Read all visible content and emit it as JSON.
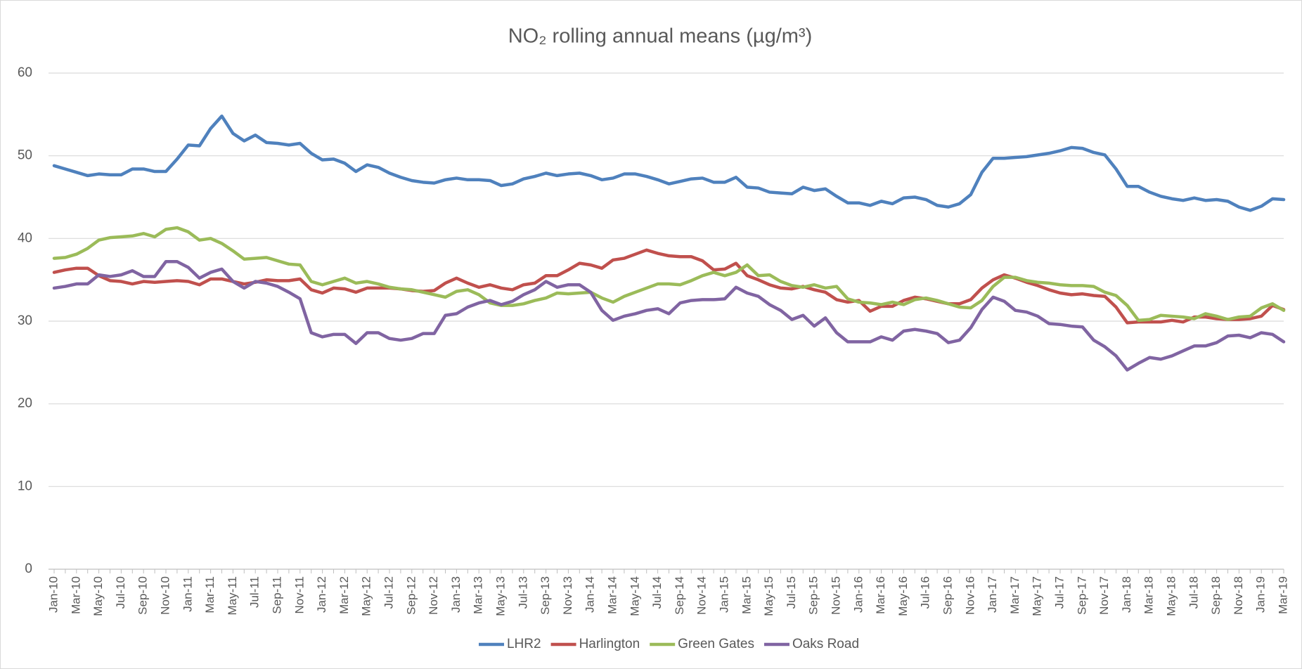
{
  "chart_data": {
    "type": "line",
    "title": "NO₂ rolling annual means (µg/m³)",
    "categories": [
      "Jan-10",
      null,
      "Mar-10",
      null,
      "May-10",
      null,
      "Jul-10",
      null,
      "Sep-10",
      null,
      "Nov-10",
      null,
      "Jan-11",
      null,
      "Mar-11",
      null,
      "May-11",
      null,
      "Jul-11",
      null,
      "Sep-11",
      null,
      "Nov-11",
      null,
      "Jan-12",
      null,
      "Mar-12",
      null,
      "May-12",
      null,
      "Jul-12",
      null,
      "Sep-12",
      null,
      "Nov-12",
      null,
      "Jan-13",
      null,
      "Mar-13",
      null,
      "May-13",
      null,
      "Jul-13",
      null,
      "Sep-13",
      null,
      "Nov-13",
      null,
      "Jan-14",
      null,
      "Mar-14",
      null,
      "May-14",
      null,
      "Jul-14",
      null,
      "Sep-14",
      null,
      "Nov-14",
      null,
      "Jan-15",
      null,
      "Mar-15",
      null,
      "May-15",
      null,
      "Jul-15",
      null,
      "Sep-15",
      null,
      "Nov-15",
      null,
      "Jan-16",
      null,
      "Mar-16",
      null,
      "May-16",
      null,
      "Jul-16",
      null,
      "Sep-16",
      null,
      "Nov-16",
      null,
      "Jan-17",
      null,
      "Mar-17",
      null,
      "May-17",
      null,
      "Jul-17",
      null,
      "Sep-17",
      null,
      "Nov-17",
      null,
      "Jan-18",
      null,
      "Mar-18",
      null,
      "May-18",
      null,
      "Jul-18",
      null,
      "Sep-18",
      null,
      "Nov-18",
      null,
      "Jan-19",
      null,
      "Mar-19"
    ],
    "series": [
      {
        "name": "LHR2",
        "color": "#4f81bd",
        "values": [
          48.8,
          48.4,
          48.0,
          47.6,
          47.8,
          47.7,
          47.7,
          48.4,
          48.4,
          48.1,
          48.1,
          49.6,
          51.3,
          51.2,
          53.3,
          54.8,
          52.7,
          51.8,
          52.5,
          51.6,
          51.5,
          51.3,
          51.5,
          50.3,
          49.5,
          49.6,
          49.1,
          48.1,
          48.9,
          48.6,
          47.9,
          47.4,
          47.0,
          46.8,
          46.7,
          47.1,
          47.3,
          47.1,
          47.1,
          47.0,
          46.4,
          46.6,
          47.2,
          47.5,
          47.9,
          47.6,
          47.8,
          47.9,
          47.6,
          47.1,
          47.3,
          47.8,
          47.8,
          47.5,
          47.1,
          46.6,
          46.9,
          47.2,
          47.3,
          46.8,
          46.8,
          47.4,
          46.2,
          46.1,
          45.6,
          45.5,
          45.4,
          46.2,
          45.8,
          46.0,
          45.1,
          44.3,
          44.3,
          44.0,
          44.5,
          44.2,
          44.9,
          45.0,
          44.7,
          44.0,
          43.8,
          44.2,
          45.3,
          48.0,
          49.7,
          49.7,
          49.8,
          49.9,
          50.1,
          50.3,
          50.6,
          51.0,
          50.9,
          50.4,
          50.1,
          48.4,
          46.3,
          46.3,
          45.6,
          45.1,
          44.8,
          44.6,
          44.9,
          44.6,
          44.7,
          44.5,
          43.8,
          43.4,
          43.9,
          44.8,
          44.7
        ]
      },
      {
        "name": "Harlington",
        "color": "#c0504d",
        "values": [
          35.9,
          36.2,
          36.4,
          36.4,
          35.5,
          34.9,
          34.8,
          34.5,
          34.8,
          34.7,
          34.8,
          34.9,
          34.8,
          34.4,
          35.1,
          35.1,
          34.8,
          34.5,
          34.7,
          35.0,
          34.9,
          34.9,
          35.1,
          33.8,
          33.4,
          34.0,
          33.9,
          33.5,
          34.0,
          34.0,
          34.0,
          33.9,
          33.7,
          33.6,
          33.7,
          34.6,
          35.2,
          34.6,
          34.1,
          34.4,
          34.0,
          33.8,
          34.4,
          34.6,
          35.5,
          35.5,
          36.2,
          37.0,
          36.8,
          36.4,
          37.4,
          37.6,
          38.1,
          38.6,
          38.2,
          37.9,
          37.8,
          37.8,
          37.3,
          36.2,
          36.3,
          37.0,
          35.5,
          35.0,
          34.4,
          34.0,
          33.9,
          34.2,
          33.8,
          33.5,
          32.6,
          32.3,
          32.5,
          31.2,
          31.8,
          31.8,
          32.5,
          32.9,
          32.7,
          32.4,
          32.1,
          32.1,
          32.6,
          34.0,
          35.0,
          35.6,
          35.2,
          34.7,
          34.3,
          33.8,
          33.4,
          33.2,
          33.3,
          33.1,
          33.0,
          31.7,
          29.8,
          29.9,
          29.9,
          29.9,
          30.1,
          29.9,
          30.5,
          30.5,
          30.3,
          30.2,
          30.2,
          30.3,
          30.6,
          31.9,
          31.4
        ]
      },
      {
        "name": "Green Gates",
        "color": "#9bbb59",
        "values": [
          37.6,
          37.7,
          38.1,
          38.8,
          39.8,
          40.1,
          40.2,
          40.3,
          40.6,
          40.2,
          41.1,
          41.3,
          40.8,
          39.8,
          40.0,
          39.4,
          38.5,
          37.5,
          37.6,
          37.7,
          37.3,
          36.9,
          36.8,
          34.8,
          34.4,
          34.8,
          35.2,
          34.6,
          34.8,
          34.5,
          34.1,
          33.9,
          33.8,
          33.5,
          33.2,
          32.9,
          33.6,
          33.8,
          33.2,
          32.2,
          31.9,
          31.9,
          32.1,
          32.5,
          32.8,
          33.4,
          33.3,
          33.4,
          33.5,
          32.8,
          32.3,
          33.0,
          33.5,
          34.0,
          34.5,
          34.5,
          34.4,
          34.9,
          35.5,
          35.9,
          35.5,
          35.9,
          36.8,
          35.5,
          35.6,
          34.8,
          34.3,
          34.1,
          34.4,
          34.0,
          34.2,
          32.7,
          32.3,
          32.2,
          32.0,
          32.3,
          32.0,
          32.6,
          32.8,
          32.5,
          32.1,
          31.7,
          31.6,
          32.5,
          34.2,
          35.3,
          35.3,
          34.9,
          34.7,
          34.6,
          34.4,
          34.3,
          34.3,
          34.2,
          33.5,
          33.1,
          31.9,
          30.1,
          30.2,
          30.7,
          30.6,
          30.5,
          30.3,
          30.9,
          30.6,
          30.2,
          30.5,
          30.6,
          31.6,
          32.1,
          31.3
        ]
      },
      {
        "name": "Oaks Road",
        "color": "#8064a2",
        "values": [
          34.0,
          34.2,
          34.5,
          34.5,
          35.6,
          35.4,
          35.6,
          36.1,
          35.4,
          35.4,
          37.2,
          37.2,
          36.5,
          35.2,
          35.9,
          36.3,
          34.8,
          34.0,
          34.8,
          34.6,
          34.2,
          33.5,
          32.7,
          28.6,
          28.1,
          28.4,
          28.4,
          27.3,
          28.6,
          28.6,
          27.9,
          27.7,
          27.9,
          28.5,
          28.5,
          30.7,
          30.9,
          31.7,
          32.2,
          32.5,
          32.0,
          32.4,
          33.2,
          33.8,
          34.8,
          34.1,
          34.4,
          34.4,
          33.5,
          31.3,
          30.1,
          30.6,
          30.9,
          31.3,
          31.5,
          30.9,
          32.2,
          32.5,
          32.6,
          32.6,
          32.7,
          34.1,
          33.4,
          33.0,
          32.0,
          31.3,
          30.2,
          30.7,
          29.4,
          30.4,
          28.6,
          27.5,
          27.5,
          27.5,
          28.1,
          27.7,
          28.8,
          29.0,
          28.8,
          28.5,
          27.4,
          27.7,
          29.2,
          31.4,
          32.9,
          32.4,
          31.3,
          31.1,
          30.6,
          29.7,
          29.6,
          29.4,
          29.3,
          27.7,
          26.9,
          25.8,
          24.1,
          24.9,
          25.6,
          25.4,
          25.8,
          26.4,
          27.0,
          27.0,
          27.4,
          28.2,
          28.3,
          28.0,
          28.6,
          28.4,
          27.5
        ]
      }
    ],
    "ylim": [
      0,
      60
    ],
    "yticks": [
      0,
      10,
      20,
      30,
      40,
      50,
      60
    ],
    "grid": true,
    "legend": "bottom"
  }
}
